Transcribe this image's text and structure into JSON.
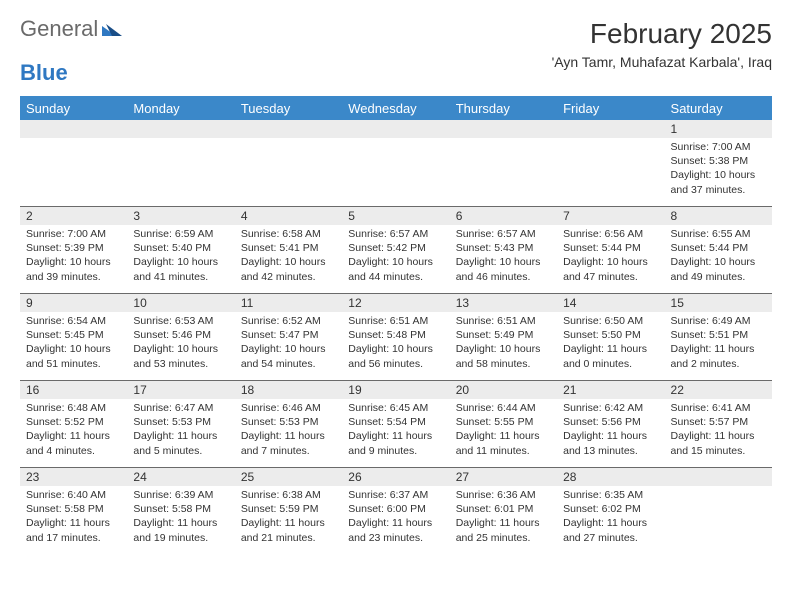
{
  "brand": {
    "part1": "General",
    "part2": "Blue"
  },
  "title": "February 2025",
  "location": "'Ayn Tamr, Muhafazat Karbala', Iraq",
  "colors": {
    "header_bg": "#3b88c9",
    "header_text": "#ffffff",
    "daynum_bg": "#ececec",
    "border": "#6a6a6a",
    "text": "#333333",
    "logo_gray": "#6a6a6a",
    "logo_blue": "#2f78c2"
  },
  "day_names": [
    "Sunday",
    "Monday",
    "Tuesday",
    "Wednesday",
    "Thursday",
    "Friday",
    "Saturday"
  ],
  "weeks": [
    [
      {
        "day": "",
        "lines": []
      },
      {
        "day": "",
        "lines": []
      },
      {
        "day": "",
        "lines": []
      },
      {
        "day": "",
        "lines": []
      },
      {
        "day": "",
        "lines": []
      },
      {
        "day": "",
        "lines": []
      },
      {
        "day": "1",
        "lines": [
          "Sunrise: 7:00 AM",
          "Sunset: 5:38 PM",
          "Daylight: 10 hours and 37 minutes."
        ]
      }
    ],
    [
      {
        "day": "2",
        "lines": [
          "Sunrise: 7:00 AM",
          "Sunset: 5:39 PM",
          "Daylight: 10 hours and 39 minutes."
        ]
      },
      {
        "day": "3",
        "lines": [
          "Sunrise: 6:59 AM",
          "Sunset: 5:40 PM",
          "Daylight: 10 hours and 41 minutes."
        ]
      },
      {
        "day": "4",
        "lines": [
          "Sunrise: 6:58 AM",
          "Sunset: 5:41 PM",
          "Daylight: 10 hours and 42 minutes."
        ]
      },
      {
        "day": "5",
        "lines": [
          "Sunrise: 6:57 AM",
          "Sunset: 5:42 PM",
          "Daylight: 10 hours and 44 minutes."
        ]
      },
      {
        "day": "6",
        "lines": [
          "Sunrise: 6:57 AM",
          "Sunset: 5:43 PM",
          "Daylight: 10 hours and 46 minutes."
        ]
      },
      {
        "day": "7",
        "lines": [
          "Sunrise: 6:56 AM",
          "Sunset: 5:44 PM",
          "Daylight: 10 hours and 47 minutes."
        ]
      },
      {
        "day": "8",
        "lines": [
          "Sunrise: 6:55 AM",
          "Sunset: 5:44 PM",
          "Daylight: 10 hours and 49 minutes."
        ]
      }
    ],
    [
      {
        "day": "9",
        "lines": [
          "Sunrise: 6:54 AM",
          "Sunset: 5:45 PM",
          "Daylight: 10 hours and 51 minutes."
        ]
      },
      {
        "day": "10",
        "lines": [
          "Sunrise: 6:53 AM",
          "Sunset: 5:46 PM",
          "Daylight: 10 hours and 53 minutes."
        ]
      },
      {
        "day": "11",
        "lines": [
          "Sunrise: 6:52 AM",
          "Sunset: 5:47 PM",
          "Daylight: 10 hours and 54 minutes."
        ]
      },
      {
        "day": "12",
        "lines": [
          "Sunrise: 6:51 AM",
          "Sunset: 5:48 PM",
          "Daylight: 10 hours and 56 minutes."
        ]
      },
      {
        "day": "13",
        "lines": [
          "Sunrise: 6:51 AM",
          "Sunset: 5:49 PM",
          "Daylight: 10 hours and 58 minutes."
        ]
      },
      {
        "day": "14",
        "lines": [
          "Sunrise: 6:50 AM",
          "Sunset: 5:50 PM",
          "Daylight: 11 hours and 0 minutes."
        ]
      },
      {
        "day": "15",
        "lines": [
          "Sunrise: 6:49 AM",
          "Sunset: 5:51 PM",
          "Daylight: 11 hours and 2 minutes."
        ]
      }
    ],
    [
      {
        "day": "16",
        "lines": [
          "Sunrise: 6:48 AM",
          "Sunset: 5:52 PM",
          "Daylight: 11 hours and 4 minutes."
        ]
      },
      {
        "day": "17",
        "lines": [
          "Sunrise: 6:47 AM",
          "Sunset: 5:53 PM",
          "Daylight: 11 hours and 5 minutes."
        ]
      },
      {
        "day": "18",
        "lines": [
          "Sunrise: 6:46 AM",
          "Sunset: 5:53 PM",
          "Daylight: 11 hours and 7 minutes."
        ]
      },
      {
        "day": "19",
        "lines": [
          "Sunrise: 6:45 AM",
          "Sunset: 5:54 PM",
          "Daylight: 11 hours and 9 minutes."
        ]
      },
      {
        "day": "20",
        "lines": [
          "Sunrise: 6:44 AM",
          "Sunset: 5:55 PM",
          "Daylight: 11 hours and 11 minutes."
        ]
      },
      {
        "day": "21",
        "lines": [
          "Sunrise: 6:42 AM",
          "Sunset: 5:56 PM",
          "Daylight: 11 hours and 13 minutes."
        ]
      },
      {
        "day": "22",
        "lines": [
          "Sunrise: 6:41 AM",
          "Sunset: 5:57 PM",
          "Daylight: 11 hours and 15 minutes."
        ]
      }
    ],
    [
      {
        "day": "23",
        "lines": [
          "Sunrise: 6:40 AM",
          "Sunset: 5:58 PM",
          "Daylight: 11 hours and 17 minutes."
        ]
      },
      {
        "day": "24",
        "lines": [
          "Sunrise: 6:39 AM",
          "Sunset: 5:58 PM",
          "Daylight: 11 hours and 19 minutes."
        ]
      },
      {
        "day": "25",
        "lines": [
          "Sunrise: 6:38 AM",
          "Sunset: 5:59 PM",
          "Daylight: 11 hours and 21 minutes."
        ]
      },
      {
        "day": "26",
        "lines": [
          "Sunrise: 6:37 AM",
          "Sunset: 6:00 PM",
          "Daylight: 11 hours and 23 minutes."
        ]
      },
      {
        "day": "27",
        "lines": [
          "Sunrise: 6:36 AM",
          "Sunset: 6:01 PM",
          "Daylight: 11 hours and 25 minutes."
        ]
      },
      {
        "day": "28",
        "lines": [
          "Sunrise: 6:35 AM",
          "Sunset: 6:02 PM",
          "Daylight: 11 hours and 27 minutes."
        ]
      },
      {
        "day": "",
        "lines": []
      }
    ]
  ]
}
